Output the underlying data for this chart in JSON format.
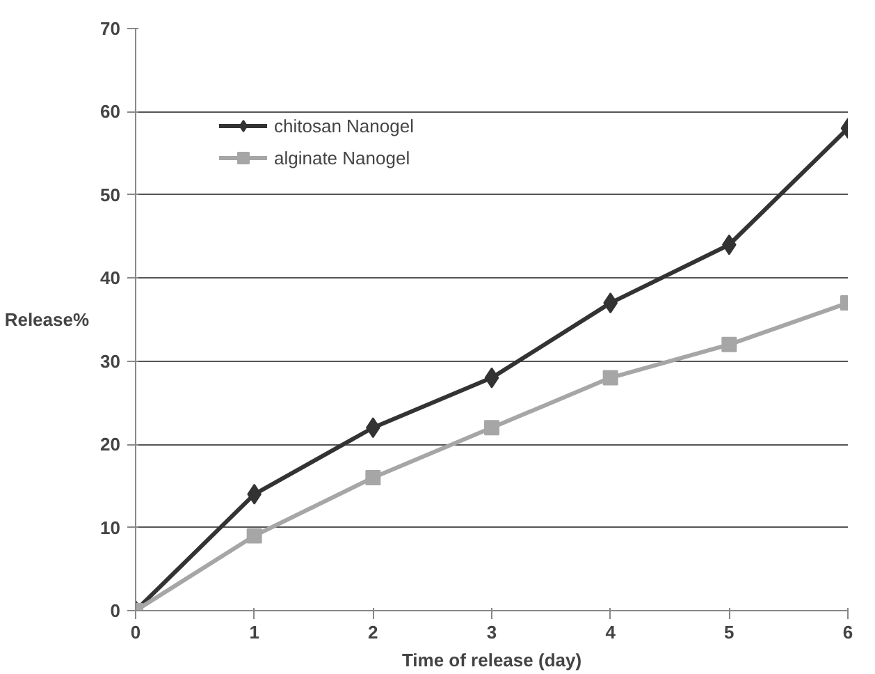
{
  "chart_data": {
    "type": "line",
    "xlabel": "Time of release (day)",
    "ylabel": "Release%",
    "x": [
      0,
      1,
      2,
      3,
      4,
      5,
      6
    ],
    "series": [
      {
        "name": "chitosan Nanogel",
        "color": "#333333",
        "marker": "diamond",
        "values": [
          0,
          14,
          22,
          28,
          37,
          44,
          58
        ]
      },
      {
        "name": "alginate Nanogel",
        "color": "#a6a6a6",
        "marker": "square",
        "values": [
          0,
          9,
          16,
          22,
          28,
          32,
          37
        ]
      }
    ],
    "xlim": [
      0,
      6
    ],
    "xticks": [
      0,
      1,
      2,
      3,
      4,
      5,
      6
    ],
    "ylim": [
      0,
      70
    ],
    "yticks": [
      0,
      10,
      20,
      30,
      40,
      50,
      60,
      70
    ],
    "grid": "y",
    "legend": "top left"
  }
}
